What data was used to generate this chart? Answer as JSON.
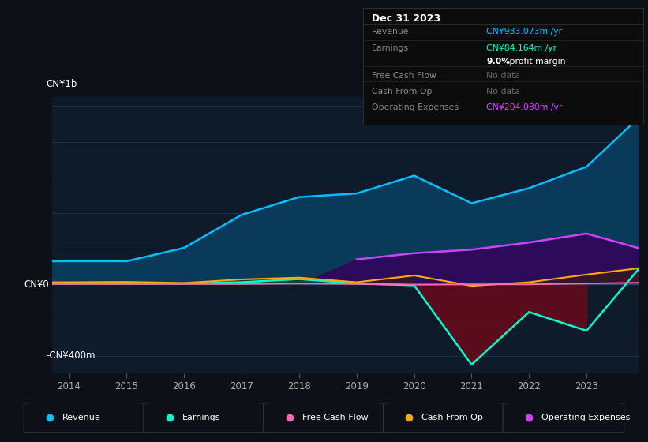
{
  "bg_color": "#0d1117",
  "chart_bg": "#0d1b2a",
  "grid_color": "#1e3550",
  "zero_line_color": "#3a5070",
  "years": [
    2013.7,
    2014,
    2015,
    2016,
    2017,
    2018,
    2019,
    2020,
    2021,
    2022,
    2023,
    2023.9
  ],
  "revenue": [
    130,
    130,
    130,
    205,
    390,
    490,
    510,
    610,
    455,
    540,
    660,
    933
  ],
  "earnings": [
    5,
    5,
    5,
    5,
    12,
    30,
    5,
    -5,
    -450,
    -155,
    -260,
    84
  ],
  "free_cash_flow": [
    2,
    2,
    2,
    2,
    2,
    5,
    2,
    -2,
    0,
    0,
    5,
    10
  ],
  "cash_from_op": [
    12,
    12,
    14,
    8,
    28,
    38,
    12,
    50,
    -8,
    12,
    55,
    90
  ],
  "operating_expenses": [
    0,
    0,
    0,
    0,
    0,
    0,
    140,
    175,
    195,
    235,
    285,
    204
  ],
  "revenue_color": "#00bfff",
  "earnings_color": "#00ffcc",
  "free_cash_flow_color": "#ff69b4",
  "cash_from_op_color": "#ffaa00",
  "operating_expenses_color": "#cc44ff",
  "revenue_fill_color": "#0a3a5a",
  "earnings_fill_pos_color": "#0a4a3a",
  "earnings_fill_neg_color": "#6a0a1a",
  "op_exp_fill_color": "#2d0a5a",
  "ylim_min": -500,
  "ylim_max": 1050,
  "ylabel_top": "CN¥1b",
  "ylabel_bottom": "-CN¥400m",
  "ylabel_zero": "CN¥0",
  "infobox_title": "Dec 31 2023",
  "infobox_rows": [
    {
      "label": "Revenue",
      "value": "CN¥933.073m /yr",
      "value_color": "#00bfff",
      "dimmed": false
    },
    {
      "label": "Earnings",
      "value": "CN¥84.164m /yr",
      "value_color": "#00ffcc",
      "dimmed": false
    },
    {
      "label": "",
      "value": "9.0% profit margin",
      "value_color": "#dddddd",
      "dimmed": false,
      "bold_part": "9.0%"
    },
    {
      "label": "Free Cash Flow",
      "value": "No data",
      "value_color": "#666666",
      "dimmed": true
    },
    {
      "label": "Cash From Op",
      "value": "No data",
      "value_color": "#666666",
      "dimmed": true
    },
    {
      "label": "Operating Expenses",
      "value": "CN¥204.080m /yr",
      "value_color": "#cc44ff",
      "dimmed": false
    }
  ],
  "legend_items": [
    {
      "label": "Revenue",
      "color": "#00bfff"
    },
    {
      "label": "Earnings",
      "color": "#00ffcc"
    },
    {
      "label": "Free Cash Flow",
      "color": "#ff69b4"
    },
    {
      "label": "Cash From Op",
      "color": "#ffaa00"
    },
    {
      "label": "Operating Expenses",
      "color": "#cc44ff"
    }
  ]
}
